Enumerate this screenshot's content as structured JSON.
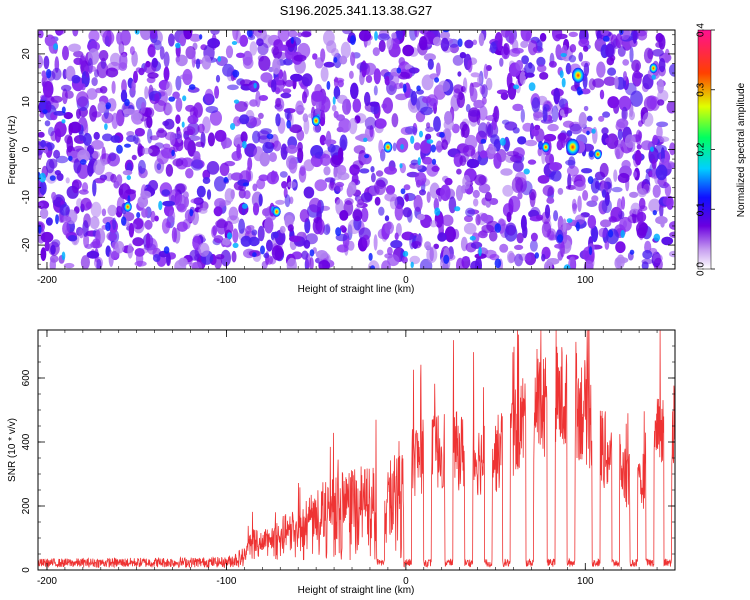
{
  "title": "S196.2025.341.13.38.G27",
  "chart_data": [
    {
      "type": "heatmap",
      "xlabel": "Height of straight line (km)",
      "ylabel": "Frequency (Hz)",
      "xlim": [
        -205,
        150
      ],
      "ylim": [
        -25,
        25
      ],
      "xticks": [
        -200,
        -100,
        0,
        100
      ],
      "yticks": [
        -20,
        -10,
        0,
        10,
        20
      ],
      "colorbar": {
        "label": "Normalized spectral amplitude",
        "range": [
          0.0,
          0.4
        ],
        "ticks": [
          "0.0",
          "0.1",
          "0.2",
          "0.3",
          "0.4"
        ]
      },
      "hotspots": [
        {
          "x": 93,
          "y": 0.5,
          "value": 0.38
        },
        {
          "x": 96,
          "y": 15.5,
          "value": 0.33
        },
        {
          "x": -10,
          "y": 0.5,
          "value": 0.18
        },
        {
          "x": -50,
          "y": 6,
          "value": 0.17
        },
        {
          "x": -72,
          "y": -13,
          "value": 0.15
        },
        {
          "x": -155,
          "y": -12,
          "value": 0.15
        },
        {
          "x": 78,
          "y": 0.5,
          "value": 0.15
        },
        {
          "x": 107,
          "y": -1,
          "value": 0.14
        },
        {
          "x": 138,
          "y": 17,
          "value": 0.14
        }
      ]
    },
    {
      "type": "line",
      "xlabel": "Height of straight line (km)",
      "ylabel": "SNR (10 * v/v)",
      "xlim": [
        -205,
        150
      ],
      "ylim": [
        0,
        750
      ],
      "xticks": [
        -200,
        -100,
        0,
        100
      ],
      "yticks": [
        0,
        200,
        400,
        600
      ],
      "color": "#ee3333",
      "envelope": {
        "x": [
          -205,
          -100,
          -90,
          -85,
          -80,
          -70,
          -60,
          -50,
          -40,
          -30,
          -20,
          -10,
          0,
          5,
          10,
          20,
          30,
          40,
          50,
          60,
          70,
          80,
          90,
          100,
          110,
          120,
          130,
          140,
          150
        ],
        "y": [
          25,
          30,
          60,
          140,
          110,
          150,
          190,
          230,
          270,
          300,
          300,
          310,
          360,
          420,
          430,
          460,
          450,
          420,
          430,
          520,
          610,
          640,
          650,
          600,
          460,
          380,
          300,
          490,
          560
        ]
      },
      "dips": [
        -14,
        1,
        12,
        24,
        35,
        46,
        56,
        69,
        81,
        92,
        106,
        117,
        127,
        136,
        146
      ]
    }
  ]
}
